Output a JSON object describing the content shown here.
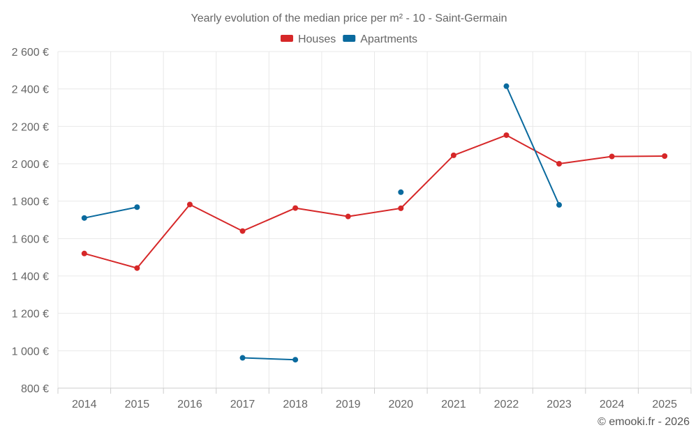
{
  "chart_data": {
    "type": "line",
    "title": "Yearly evolution of the median price per m² - 10 - Saint-Germain",
    "categories": [
      "2014",
      "2015",
      "2016",
      "2017",
      "2018",
      "2019",
      "2020",
      "2021",
      "2022",
      "2023",
      "2024",
      "2025"
    ],
    "ylim": [
      800,
      2600
    ],
    "yticks": [
      800,
      1000,
      1200,
      1400,
      1600,
      1800,
      2000,
      2200,
      2400,
      2600
    ],
    "ytick_labels": [
      "800 €",
      "1 000 €",
      "1 200 €",
      "1 400 €",
      "1 600 €",
      "1 800 €",
      "2 000 €",
      "2 200 €",
      "2 400 €",
      "2 600 €"
    ],
    "grid": true,
    "legend_position": "top-center",
    "series": [
      {
        "name": "Houses",
        "color": "#d62728",
        "values": [
          1520,
          1442,
          1782,
          1640,
          1763,
          1718,
          1762,
          2045,
          2153,
          2000,
          2039,
          2041
        ]
      },
      {
        "name": "Apartments",
        "color": "#0a6a9e",
        "values": [
          1710,
          1768,
          null,
          962,
          952,
          null,
          1848,
          null,
          2415,
          1780,
          null,
          null
        ]
      }
    ]
  },
  "credit": "© emooki.fr - 2026"
}
